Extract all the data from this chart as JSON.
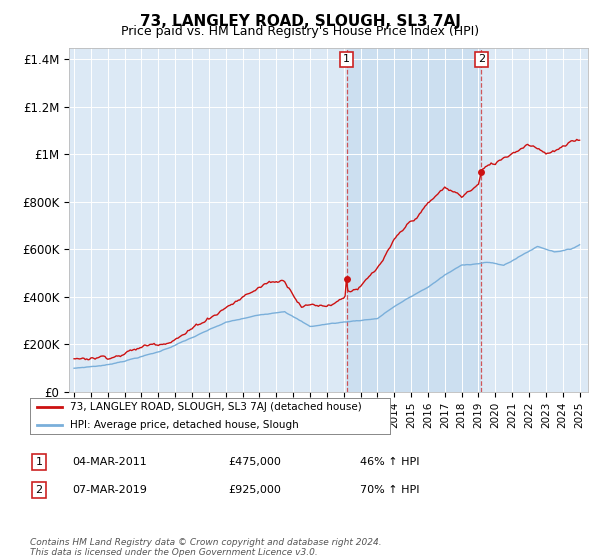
{
  "title": "73, LANGLEY ROAD, SLOUGH, SL3 7AJ",
  "subtitle": "Price paid vs. HM Land Registry's House Price Index (HPI)",
  "title_fontsize": 11,
  "subtitle_fontsize": 9,
  "ylabel_ticks": [
    "£0",
    "£200K",
    "£400K",
    "£600K",
    "£800K",
    "£1M",
    "£1.2M",
    "£1.4M"
  ],
  "ytick_values": [
    0,
    200000,
    400000,
    600000,
    800000,
    1000000,
    1200000,
    1400000
  ],
  "ylim": [
    0,
    1450000
  ],
  "xlim_start": 1994.7,
  "xlim_end": 2025.5,
  "plot_bg_color": "#dce9f5",
  "highlight_bg_color": "#ccdff0",
  "fig_bg_color": "#ffffff",
  "grid_color": "#ffffff",
  "hpi_color": "#7aafda",
  "property_color": "#cc1111",
  "sale1_year": 2011.17,
  "sale1_price": 475000,
  "sale2_year": 2019.17,
  "sale2_price": 925000,
  "legend_line1": "73, LANGLEY ROAD, SLOUGH, SL3 7AJ (detached house)",
  "legend_line2": "HPI: Average price, detached house, Slough",
  "annotation1_label": "1",
  "annotation1_date": "04-MAR-2011",
  "annotation1_price": "£475,000",
  "annotation1_pct": "46% ↑ HPI",
  "annotation2_label": "2",
  "annotation2_date": "07-MAR-2019",
  "annotation2_price": "£925,000",
  "annotation2_pct": "70% ↑ HPI",
  "footer": "Contains HM Land Registry data © Crown copyright and database right 2024.\nThis data is licensed under the Open Government Licence v3.0."
}
